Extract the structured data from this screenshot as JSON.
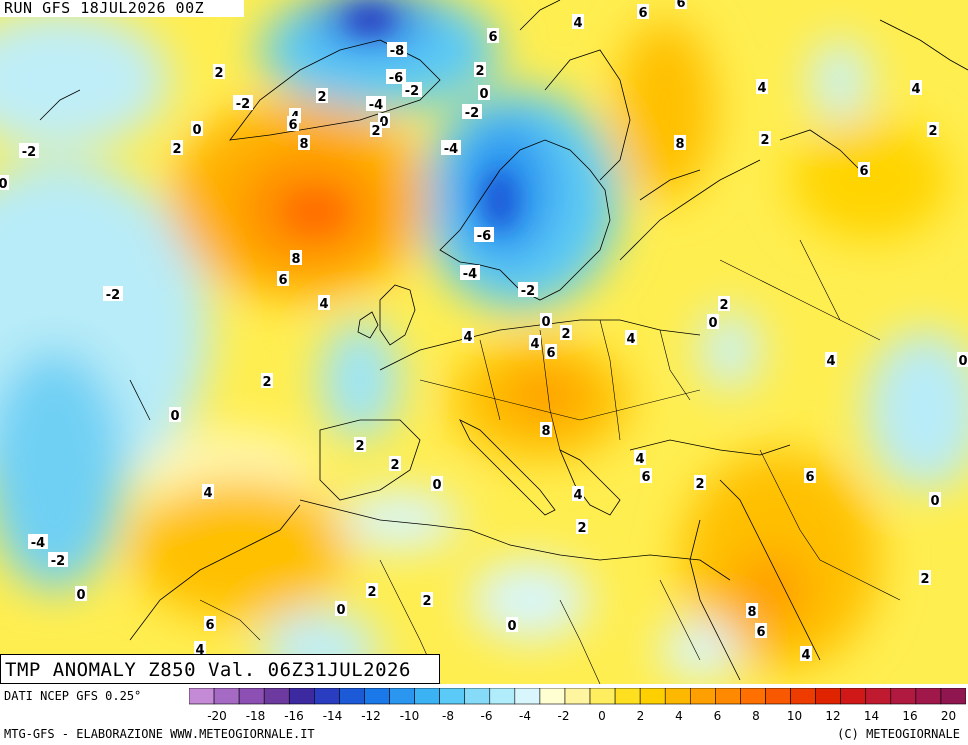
{
  "header": {
    "run_title": "RUN GFS 18JUL2026 00Z",
    "valid_title": "TMP ANOMALY Z850 Val. 06Z31JUL2026"
  },
  "footer": {
    "data_source": "DATI NCEP GFS 0.25°",
    "credits_left": "MTG-GFS - ELABORAZIONE WWW.METEOGIORNALE.IT",
    "credits_right": "(C) METEOGIORNALE"
  },
  "colorbar": {
    "tick_labels": [
      "-20",
      "-18",
      "-16",
      "-14",
      "-12",
      "-10",
      "-8",
      "-6",
      "-4",
      "-2",
      "0",
      "2",
      "4",
      "6",
      "8",
      "10",
      "12",
      "14",
      "16",
      "20"
    ],
    "swatches": [
      "#c48ad6",
      "#a56ac4",
      "#8c4fb3",
      "#6d3a9f",
      "#3e2aa0",
      "#2a3cc0",
      "#1c5ad8",
      "#1a78e8",
      "#2a96f0",
      "#3ab2f4",
      "#5ccaf6",
      "#86dcf8",
      "#b0ecfa",
      "#d8f6fb",
      "#ffffd2",
      "#fff5a0",
      "#ffee60",
      "#ffe020",
      "#ffd000",
      "#ffb800",
      "#ffa000",
      "#ff8a00",
      "#ff7000",
      "#f85800",
      "#ee3c00",
      "#e02400",
      "#d01818",
      "#c01a30",
      "#b01a40",
      "#a0184a",
      "#901650"
    ]
  },
  "map_labels": [
    {
      "text": "6"
    },
    {
      "text": "4"
    },
    {
      "text": "6"
    },
    {
      "text": "-8"
    },
    {
      "text": "6"
    },
    {
      "text": "2"
    },
    {
      "text": "-2"
    },
    {
      "text": "2"
    },
    {
      "text": "-6"
    },
    {
      "text": "-2"
    },
    {
      "text": "0"
    },
    {
      "text": "4"
    },
    {
      "text": "-4"
    },
    {
      "text": "4"
    },
    {
      "text": "6"
    },
    {
      "text": "0"
    },
    {
      "text": "-2"
    },
    {
      "text": "0"
    },
    {
      "text": "2"
    },
    {
      "text": "2"
    },
    {
      "text": "8"
    },
    {
      "text": "-2"
    },
    {
      "text": "2"
    },
    {
      "text": "-4"
    },
    {
      "text": "8"
    },
    {
      "text": "2"
    },
    {
      "text": "0"
    },
    {
      "text": "2"
    },
    {
      "text": "6"
    },
    {
      "text": "-6"
    },
    {
      "text": "4"
    },
    {
      "text": "8"
    },
    {
      "text": "-4"
    },
    {
      "text": "6"
    },
    {
      "text": "-2"
    },
    {
      "text": "-2"
    },
    {
      "text": "2"
    },
    {
      "text": "4"
    },
    {
      "text": "0"
    },
    {
      "text": "2"
    },
    {
      "text": "4"
    },
    {
      "text": "4"
    },
    {
      "text": "4"
    },
    {
      "text": "6"
    },
    {
      "text": "0"
    },
    {
      "text": "4"
    },
    {
      "text": "2"
    },
    {
      "text": "0"
    },
    {
      "text": "0"
    },
    {
      "text": "8"
    },
    {
      "text": "2"
    },
    {
      "text": "2"
    },
    {
      "text": "4"
    },
    {
      "text": "0"
    },
    {
      "text": "6"
    },
    {
      "text": "6"
    },
    {
      "text": "2"
    },
    {
      "text": "4"
    },
    {
      "text": "4"
    },
    {
      "text": "2"
    },
    {
      "text": "0"
    },
    {
      "text": "-4"
    },
    {
      "text": "-2"
    },
    {
      "text": "0"
    },
    {
      "text": "2"
    },
    {
      "text": "2"
    },
    {
      "text": "2"
    },
    {
      "text": "0"
    },
    {
      "text": "6"
    },
    {
      "text": "0"
    },
    {
      "text": "8"
    },
    {
      "text": "6"
    },
    {
      "text": "4"
    },
    {
      "text": "4"
    }
  ]
}
